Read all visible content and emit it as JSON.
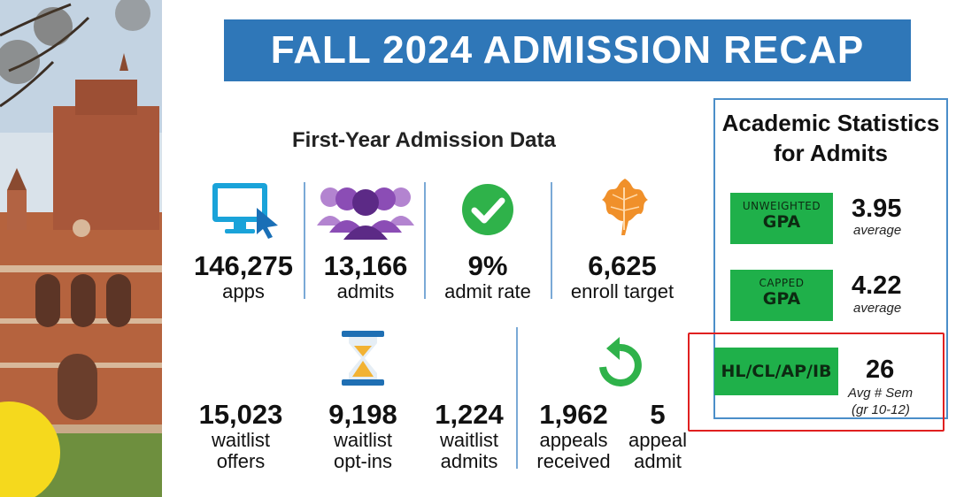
{
  "banner": {
    "title": "FALL 2024 ADMISSION RECAP",
    "color": "#2f77b8"
  },
  "first_year": {
    "title": "First-Year Admission Data",
    "row1": [
      {
        "value": "146,275",
        "label": "apps",
        "icon": "computer-monitor-icon"
      },
      {
        "value": "13,166",
        "label": "admits",
        "icon": "people-group-icon"
      },
      {
        "value": "9%",
        "label": "admit rate",
        "icon": "checkmark-circle-icon"
      },
      {
        "value": "6,625",
        "label": "enroll target",
        "icon": "oak-leaf-icon"
      }
    ],
    "row2": [
      {
        "value": "15,023",
        "label_1": "waitlist",
        "label_2": "offers"
      },
      {
        "value": "9,198",
        "label_1": "waitlist",
        "label_2": "opt-ins",
        "icon": "hourglass-icon"
      },
      {
        "value": "1,224",
        "label_1": "waitlist",
        "label_2": "admits"
      },
      {
        "value": "1,962",
        "label_1": "appeals",
        "label_2": "received",
        "icon": "refresh-arrow-icon"
      },
      {
        "value": "5",
        "label_1": "appeal",
        "label_2": "admit"
      }
    ]
  },
  "academic": {
    "title_1": "Academic Statistics",
    "title_2": "for Admits",
    "stats": [
      {
        "small": "UNWEIGHTED",
        "big": "GPA",
        "value": "3.95",
        "sub": "average"
      },
      {
        "small": "CAPPED",
        "big": "GPA",
        "value": "4.22",
        "sub": "average"
      },
      {
        "big": "HL/CL/AP/IB",
        "value": "26",
        "sub_1": "Avg # Sem",
        "sub_2": "(gr 10-12)"
      }
    ]
  },
  "colors": {
    "green": "#1fb04a",
    "blue": "#2f77b8",
    "purple": "#7b3fa0",
    "orange": "#f0902a",
    "red": "#e02020"
  }
}
